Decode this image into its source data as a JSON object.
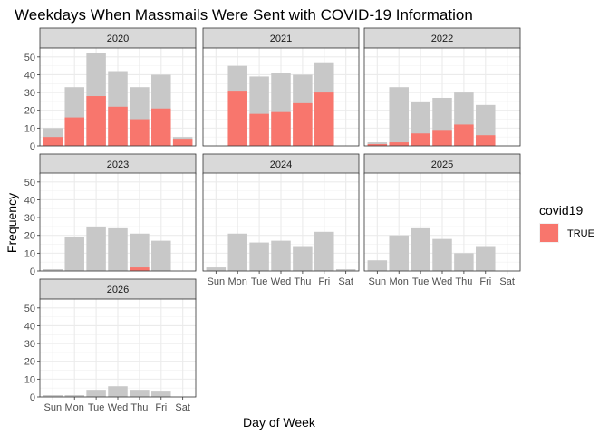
{
  "chart_data": {
    "type": "bar",
    "title": "Weekdays When Massmails Were Sent with COVID-19 Information",
    "xlabel": "Day of Week",
    "ylabel": "Frequency",
    "categories": [
      "Sun",
      "Mon",
      "Tue",
      "Wed",
      "Thu",
      "Fri",
      "Sat"
    ],
    "ylim": [
      0,
      55
    ],
    "yticks": [
      0,
      10,
      20,
      30,
      40,
      50
    ],
    "legend": {
      "title": "covid19",
      "placement": "right",
      "entries": [
        {
          "label": "TRUE",
          "color": "#F8766D"
        }
      ]
    },
    "colors": {
      "total": "#C8C8C8",
      "covid": "#F8766D"
    },
    "facets": [
      {
        "year": "2020",
        "total": [
          10,
          33,
          52,
          42,
          33,
          40,
          5
        ],
        "covid_true": [
          5,
          16,
          28,
          22,
          15,
          21,
          4
        ]
      },
      {
        "year": "2021",
        "total": [
          0,
          45,
          39,
          41,
          40,
          47,
          0
        ],
        "covid_true": [
          0,
          31,
          18,
          19,
          24,
          30,
          0
        ]
      },
      {
        "year": "2022",
        "total": [
          2,
          33,
          25,
          27,
          30,
          23,
          0
        ],
        "covid_true": [
          1,
          2,
          7,
          9,
          12,
          6,
          0
        ]
      },
      {
        "year": "2023",
        "total": [
          1,
          19,
          25,
          24,
          21,
          17,
          0
        ],
        "covid_true": [
          0,
          0,
          0,
          0,
          2,
          0,
          0
        ]
      },
      {
        "year": "2024",
        "total": [
          2,
          21,
          16,
          17,
          14,
          22,
          1
        ],
        "covid_true": [
          0,
          0,
          0,
          0,
          0,
          0,
          0
        ]
      },
      {
        "year": "2025",
        "total": [
          6,
          20,
          24,
          18,
          10,
          14,
          0
        ],
        "covid_true": [
          0,
          0,
          0,
          0,
          0,
          0,
          0
        ]
      },
      {
        "year": "2026",
        "total": [
          1,
          1,
          4,
          6,
          4,
          3,
          0
        ],
        "covid_true": [
          0,
          0,
          0,
          0,
          0,
          0,
          0
        ]
      }
    ]
  }
}
